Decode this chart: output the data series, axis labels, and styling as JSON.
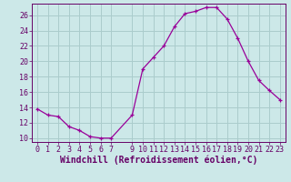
{
  "hours": [
    0,
    1,
    2,
    3,
    4,
    5,
    6,
    7,
    9,
    10,
    11,
    12,
    13,
    14,
    15,
    16,
    17,
    18,
    19,
    20,
    21,
    22,
    23
  ],
  "values": [
    13.8,
    13.0,
    12.8,
    11.5,
    11.0,
    10.2,
    10.0,
    10.0,
    13.0,
    19.0,
    20.5,
    22.0,
    24.5,
    26.2,
    26.5,
    27.0,
    27.0,
    25.5,
    23.0,
    20.0,
    17.5,
    16.2,
    15.0
  ],
  "line_color": "#990099",
  "marker_color": "#990099",
  "bg_color": "#cce8e8",
  "grid_color": "#aacccc",
  "xlabel": "Windchill (Refroidissement éolien,°C)",
  "xlim": [
    -0.5,
    23.5
  ],
  "ylim": [
    9.5,
    27.5
  ],
  "yticks": [
    10,
    12,
    14,
    16,
    18,
    20,
    22,
    24,
    26
  ],
  "xticks": [
    0,
    1,
    2,
    3,
    4,
    5,
    6,
    7,
    9,
    10,
    11,
    12,
    13,
    14,
    15,
    16,
    17,
    18,
    19,
    20,
    21,
    22,
    23
  ],
  "tick_label_fontsize": 6,
  "xlabel_fontsize": 7,
  "axis_label_color": "#660066",
  "tick_color": "#660066",
  "spine_color": "#660066"
}
